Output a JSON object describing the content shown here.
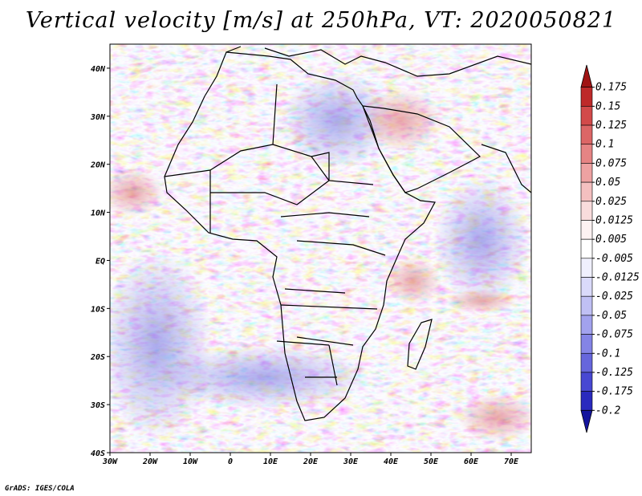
{
  "title": "Vertical velocity [m/s] at 250hPa, VT: 2020050821",
  "credit": "GrADS: IGES/COLA",
  "lat_labels": [
    "40N",
    "30N",
    "20N",
    "10N",
    "EQ",
    "10S",
    "20S",
    "30S",
    "40S"
  ],
  "lon_labels": [
    "30W",
    "20W",
    "10W",
    "0",
    "10E",
    "20E",
    "30E",
    "40E",
    "50E",
    "60E",
    "70E"
  ],
  "colorbar": {
    "labels": [
      "0.175",
      "0.15",
      "0.125",
      "0.1",
      "0.075",
      "0.05",
      "0.025",
      "0.0125",
      "0.005",
      "-0.005",
      "-0.0125",
      "-0.025",
      "-0.05",
      "-0.075",
      "-0.1",
      "-0.125",
      "-0.175",
      "-0.2"
    ],
    "colors": [
      "#a01414",
      "#be2a2a",
      "#d24a4a",
      "#dc6666",
      "#e68484",
      "#eea2a2",
      "#f4c0c0",
      "#f9dcdc",
      "#fdf2f2",
      "#ffffff",
      "#f0f0fd",
      "#dadafa",
      "#c0c0f4",
      "#a2a2ee",
      "#8484e6",
      "#6666dc",
      "#4848d2",
      "#2a2abe",
      "#14149e"
    ]
  },
  "chart_data": {
    "type": "heatmap",
    "variable": "Vertical velocity",
    "units": "m/s",
    "level": "250hPa",
    "valid_time": "2020050821",
    "lon_range": [
      -30,
      75
    ],
    "lat_range": [
      -40,
      45
    ],
    "contour_levels": [
      -0.2,
      -0.175,
      -0.125,
      -0.1,
      -0.075,
      -0.05,
      -0.025,
      -0.0125,
      -0.005,
      0.005,
      0.0125,
      0.025,
      0.05,
      0.075,
      0.1,
      0.125,
      0.15,
      0.175
    ]
  }
}
